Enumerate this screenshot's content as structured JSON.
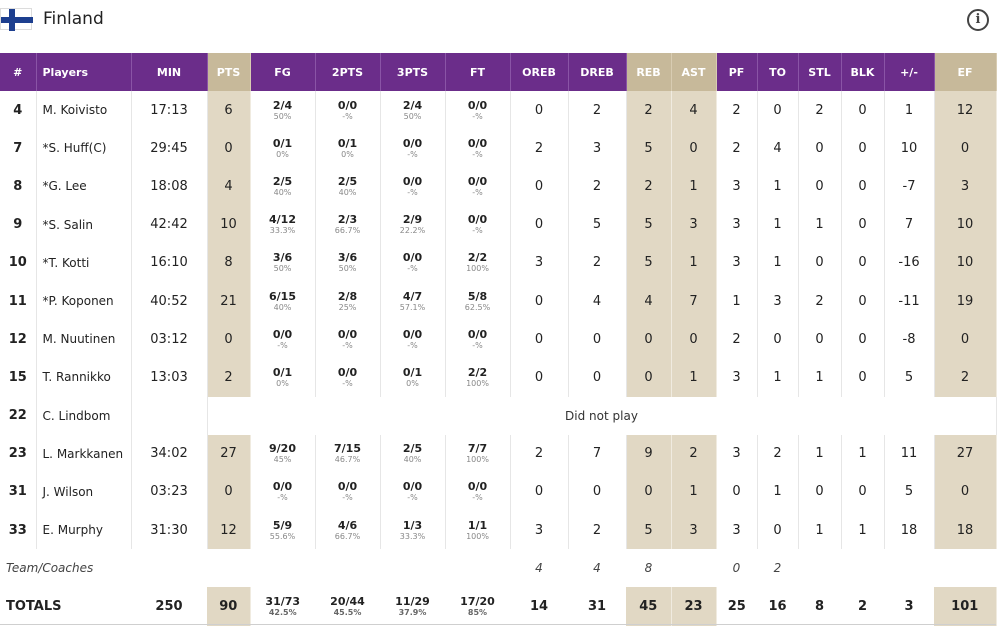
{
  "team": {
    "name": "Finland",
    "flag": "finland-flag",
    "info_icon": "info-icon"
  },
  "columns": [
    "#",
    "Players",
    "MIN",
    "PTS",
    "FG",
    "2PTS",
    "3PTS",
    "FT",
    "OREB",
    "DREB",
    "REB",
    "AST",
    "PF",
    "TO",
    "STL",
    "BLK",
    "+/-",
    "EF"
  ],
  "players": [
    {
      "num": "4",
      "name": "M. Koivisto",
      "min": "17:13",
      "pts": "6",
      "fg": "2/4",
      "fg_pct": "50%",
      "p2": "0/0",
      "p2_pct": "-%",
      "p3": "2/4",
      "p3_pct": "50%",
      "ft": "0/0",
      "ft_pct": "-%",
      "oreb": "0",
      "dreb": "2",
      "reb": "2",
      "ast": "4",
      "pf": "2",
      "to": "0",
      "stl": "2",
      "blk": "0",
      "pm": "1",
      "ef": "12"
    },
    {
      "num": "7",
      "name": "*S. Huff(C)",
      "min": "29:45",
      "pts": "0",
      "fg": "0/1",
      "fg_pct": "0%",
      "p2": "0/1",
      "p2_pct": "0%",
      "p3": "0/0",
      "p3_pct": "-%",
      "ft": "0/0",
      "ft_pct": "-%",
      "oreb": "2",
      "dreb": "3",
      "reb": "5",
      "ast": "0",
      "pf": "2",
      "to": "4",
      "stl": "0",
      "blk": "0",
      "pm": "10",
      "ef": "0"
    },
    {
      "num": "8",
      "name": "*G. Lee",
      "min": "18:08",
      "pts": "4",
      "fg": "2/5",
      "fg_pct": "40%",
      "p2": "2/5",
      "p2_pct": "40%",
      "p3": "0/0",
      "p3_pct": "-%",
      "ft": "0/0",
      "ft_pct": "-%",
      "oreb": "0",
      "dreb": "2",
      "reb": "2",
      "ast": "1",
      "pf": "3",
      "to": "1",
      "stl": "0",
      "blk": "0",
      "pm": "-7",
      "ef": "3"
    },
    {
      "num": "9",
      "name": "*S. Salin",
      "min": "42:42",
      "pts": "10",
      "fg": "4/12",
      "fg_pct": "33.3%",
      "p2": "2/3",
      "p2_pct": "66.7%",
      "p3": "2/9",
      "p3_pct": "22.2%",
      "ft": "0/0",
      "ft_pct": "-%",
      "oreb": "0",
      "dreb": "5",
      "reb": "5",
      "ast": "3",
      "pf": "3",
      "to": "1",
      "stl": "1",
      "blk": "0",
      "pm": "7",
      "ef": "10"
    },
    {
      "num": "10",
      "name": "*T. Kotti",
      "min": "16:10",
      "pts": "8",
      "fg": "3/6",
      "fg_pct": "50%",
      "p2": "3/6",
      "p2_pct": "50%",
      "p3": "0/0",
      "p3_pct": "-%",
      "ft": "2/2",
      "ft_pct": "100%",
      "oreb": "3",
      "dreb": "2",
      "reb": "5",
      "ast": "1",
      "pf": "3",
      "to": "1",
      "stl": "0",
      "blk": "0",
      "pm": "-16",
      "ef": "10"
    },
    {
      "num": "11",
      "name": "*P. Koponen",
      "min": "40:52",
      "pts": "21",
      "fg": "6/15",
      "fg_pct": "40%",
      "p2": "2/8",
      "p2_pct": "25%",
      "p3": "4/7",
      "p3_pct": "57.1%",
      "ft": "5/8",
      "ft_pct": "62.5%",
      "oreb": "0",
      "dreb": "4",
      "reb": "4",
      "ast": "7",
      "pf": "1",
      "to": "3",
      "stl": "2",
      "blk": "0",
      "pm": "-11",
      "ef": "19"
    },
    {
      "num": "12",
      "name": "M. Nuutinen",
      "min": "03:12",
      "pts": "0",
      "fg": "0/0",
      "fg_pct": "-%",
      "p2": "0/0",
      "p2_pct": "-%",
      "p3": "0/0",
      "p3_pct": "-%",
      "ft": "0/0",
      "ft_pct": "-%",
      "oreb": "0",
      "dreb": "0",
      "reb": "0",
      "ast": "0",
      "pf": "2",
      "to": "0",
      "stl": "0",
      "blk": "0",
      "pm": "-8",
      "ef": "0"
    },
    {
      "num": "15",
      "name": "T. Rannikko",
      "min": "13:03",
      "pts": "2",
      "fg": "0/1",
      "fg_pct": "0%",
      "p2": "0/0",
      "p2_pct": "-%",
      "p3": "0/1",
      "p3_pct": "0%",
      "ft": "2/2",
      "ft_pct": "100%",
      "oreb": "0",
      "dreb": "0",
      "reb": "0",
      "ast": "1",
      "pf": "3",
      "to": "1",
      "stl": "1",
      "blk": "0",
      "pm": "5",
      "ef": "2"
    },
    {
      "num": "22",
      "name": "C. Lindbom",
      "dnp": "Did not play"
    },
    {
      "num": "23",
      "name": "L. Markkanen",
      "min": "34:02",
      "pts": "27",
      "fg": "9/20",
      "fg_pct": "45%",
      "p2": "7/15",
      "p2_pct": "46.7%",
      "p3": "2/5",
      "p3_pct": "40%",
      "ft": "7/7",
      "ft_pct": "100%",
      "oreb": "2",
      "dreb": "7",
      "reb": "9",
      "ast": "2",
      "pf": "3",
      "to": "2",
      "stl": "1",
      "blk": "1",
      "pm": "11",
      "ef": "27"
    },
    {
      "num": "31",
      "name": "J. Wilson",
      "min": "03:23",
      "pts": "0",
      "fg": "0/0",
      "fg_pct": "-%",
      "p2": "0/0",
      "p2_pct": "-%",
      "p3": "0/0",
      "p3_pct": "-%",
      "ft": "0/0",
      "ft_pct": "-%",
      "oreb": "0",
      "dreb": "0",
      "reb": "0",
      "ast": "1",
      "pf": "0",
      "to": "1",
      "stl": "0",
      "blk": "0",
      "pm": "5",
      "ef": "0"
    },
    {
      "num": "33",
      "name": "E. Murphy",
      "min": "31:30",
      "pts": "12",
      "fg": "5/9",
      "fg_pct": "55.6%",
      "p2": "4/6",
      "p2_pct": "66.7%",
      "p3": "1/3",
      "p3_pct": "33.3%",
      "ft": "1/1",
      "ft_pct": "100%",
      "oreb": "3",
      "dreb": "2",
      "reb": "5",
      "ast": "3",
      "pf": "3",
      "to": "0",
      "stl": "1",
      "blk": "1",
      "pm": "18",
      "ef": "18"
    }
  ],
  "team_coaches": {
    "label": "Team/Coaches",
    "oreb": "4",
    "dreb": "4",
    "reb": "8",
    "pf": "0",
    "to": "2"
  },
  "totals": {
    "label": "TOTALS",
    "min": "250",
    "pts": "90",
    "fg": "31/73",
    "fg_pct": "42.5%",
    "p2": "20/44",
    "p2_pct": "45.5%",
    "p3": "11/29",
    "p3_pct": "37.9%",
    "ft": "17/20",
    "ft_pct": "85%",
    "oreb": "14",
    "dreb": "31",
    "reb": "45",
    "ast": "23",
    "pf": "25",
    "to": "16",
    "stl": "8",
    "blk": "2",
    "pm": "3",
    "ef": "101"
  }
}
